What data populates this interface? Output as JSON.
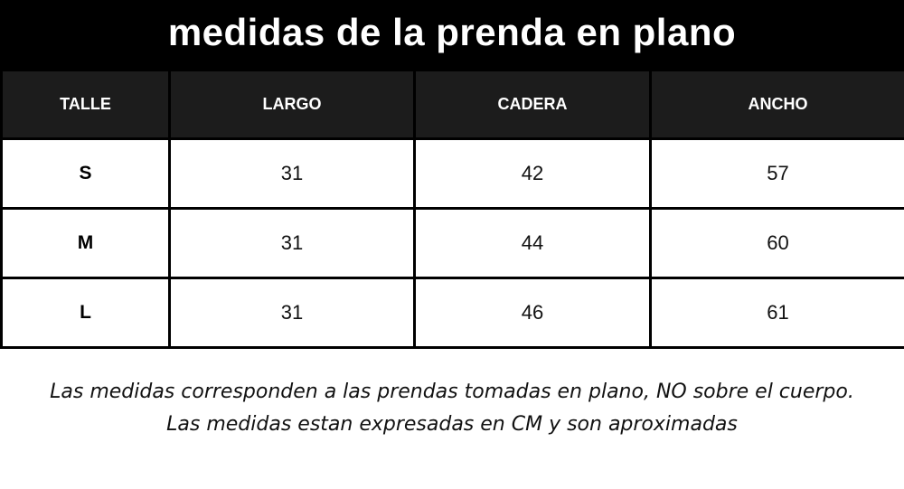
{
  "title": "medidas de la prenda en plano",
  "table": {
    "headers": [
      "TALLE",
      "LARGO",
      "CADERA",
      "ANCHO"
    ],
    "rows": [
      [
        "S",
        "31",
        "42",
        "57"
      ],
      [
        "M",
        "31",
        "44",
        "60"
      ],
      [
        "L",
        "31",
        "46",
        "61"
      ]
    ]
  },
  "notes": [
    "Las medidas corresponden a las prendas tomadas en plano, NO sobre el cuerpo.",
    "Las medidas estan expresadas en CM y son aproximadas"
  ],
  "colors": {
    "header_bg": "#000000",
    "table_header_bg": "#1c1c1c",
    "border": "#000000",
    "text_light": "#ffffff",
    "text_dark": "#111111"
  }
}
